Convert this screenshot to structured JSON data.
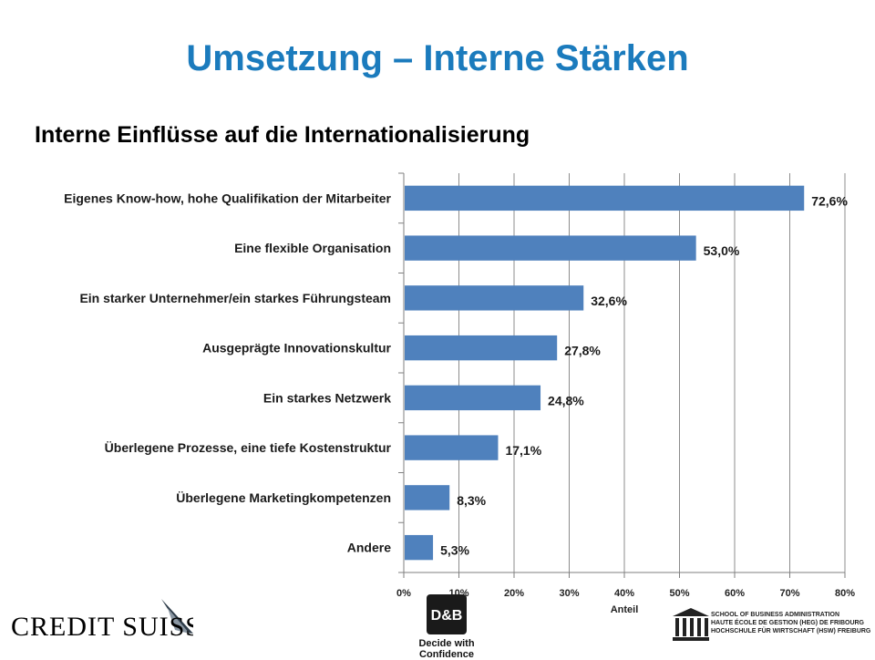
{
  "title": "Umsetzung – Interne Stärken",
  "subtitle": "Interne Einflüsse auf die Internationalisierung",
  "chart_data": {
    "type": "bar",
    "orientation": "horizontal",
    "categories": [
      "Eigenes Know-how, hohe Qualifikation der Mitarbeiter",
      "Eine flexible Organisation",
      "Ein starker Unternehmer/ein starkes Führungsteam",
      "Ausgeprägte Innovationskultur",
      "Ein starkes Netzwerk",
      "Überlegene Prozesse, eine tiefe Kostenstruktur",
      "Überlegene Marketingkompetenzen",
      "Andere"
    ],
    "values": [
      72.6,
      53.0,
      32.6,
      27.8,
      24.8,
      17.1,
      8.3,
      5.3
    ],
    "data_labels": [
      "72,6%",
      "53,0%",
      "32,6%",
      "27,8%",
      "24,8%",
      "17,1%",
      "8,3%",
      "5,3%"
    ],
    "xlabel": "Anteil",
    "xlim": [
      0,
      80
    ],
    "xticks": [
      "0%",
      "10%",
      "20%",
      "30%",
      "40%",
      "50%",
      "60%",
      "70%",
      "80%"
    ],
    "grid": true,
    "bar_color": "#4f81bd"
  },
  "logos": {
    "credit_suisse": "CREDIT SUISSE",
    "db_tagline": "Decide with Confidence",
    "db_mark": "D&B",
    "school": [
      "SCHOOL OF BUSINESS ADMINISTRATION",
      "HAUTE ÉCOLE DE GESTION (HEG) DE FRIBOURG",
      "HOCHSCHULE FÜR WIRTSCHAFT (HSW) FREIBURG"
    ]
  }
}
